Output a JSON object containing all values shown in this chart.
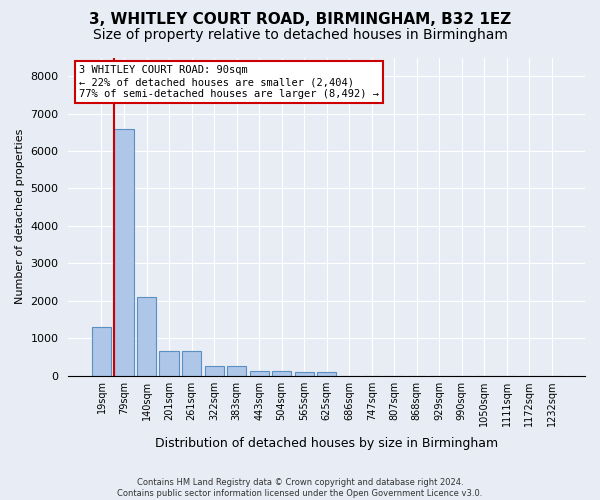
{
  "title": "3, WHITLEY COURT ROAD, BIRMINGHAM, B32 1EZ",
  "subtitle": "Size of property relative to detached houses in Birmingham",
  "xlabel": "Distribution of detached houses by size in Birmingham",
  "ylabel": "Number of detached properties",
  "footer_line1": "Contains HM Land Registry data © Crown copyright and database right 2024.",
  "footer_line2": "Contains public sector information licensed under the Open Government Licence v3.0.",
  "bin_labels": [
    "19sqm",
    "79sqm",
    "140sqm",
    "201sqm",
    "261sqm",
    "322sqm",
    "383sqm",
    "443sqm",
    "504sqm",
    "565sqm",
    "625sqm",
    "686sqm",
    "747sqm",
    "807sqm",
    "868sqm",
    "929sqm",
    "990sqm",
    "1050sqm",
    "1111sqm",
    "1172sqm",
    "1232sqm"
  ],
  "bar_values": [
    1300,
    6600,
    2100,
    650,
    650,
    260,
    260,
    130,
    130,
    90,
    90,
    0,
    0,
    0,
    0,
    0,
    0,
    0,
    0,
    0,
    0
  ],
  "bar_color": "#aec6e8",
  "bar_edge_color": "#5a8fc2",
  "property_line_bin": 1,
  "annotation_text": "3 WHITLEY COURT ROAD: 90sqm\n← 22% of detached houses are smaller (2,404)\n77% of semi-detached houses are larger (8,492) →",
  "annotation_box_color": "#ffffff",
  "annotation_box_edge": "#cc0000",
  "property_line_color": "#cc0000",
  "ylim": [
    0,
    8500
  ],
  "yticks": [
    0,
    1000,
    2000,
    3000,
    4000,
    5000,
    6000,
    7000,
    8000
  ],
  "background_color": "#e8edf5",
  "plot_background": "#e8edf5",
  "grid_color": "#ffffff",
  "title_fontsize": 11,
  "subtitle_fontsize": 10
}
